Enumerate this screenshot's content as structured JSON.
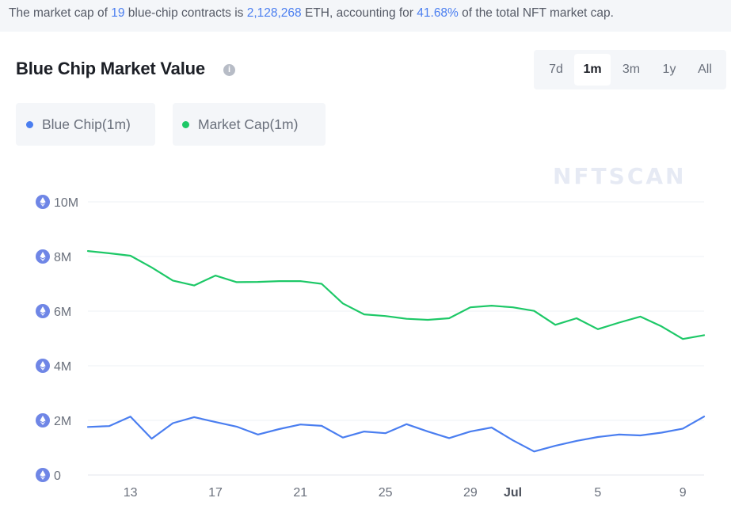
{
  "banner": {
    "part1": "The market cap of ",
    "contracts": "19",
    "part2": " blue-chip contracts is ",
    "value": "2,128,268",
    "part3": " ETH, accounting for ",
    "percent": "41.68%",
    "part4": " of the total NFT market cap."
  },
  "title": "Blue Chip Market Value",
  "info_icon": "info-icon",
  "range_buttons": [
    {
      "label": "7d",
      "active": false
    },
    {
      "label": "1m",
      "active": true
    },
    {
      "label": "3m",
      "active": false
    },
    {
      "label": "1y",
      "active": false
    },
    {
      "label": "All",
      "active": false
    }
  ],
  "legend": [
    {
      "label": "Blue Chip(1m)",
      "color": "#4a7ef0"
    },
    {
      "label": "Market Cap(1m)",
      "color": "#1dc867"
    }
  ],
  "watermark": "NFTSCAN",
  "axis_icon": "eth-icon",
  "chart_data": {
    "type": "line",
    "ylim": [
      0,
      10000000
    ],
    "y_ticks": [
      {
        "value": 0,
        "label": "0"
      },
      {
        "value": 2000000,
        "label": "2M"
      },
      {
        "value": 4000000,
        "label": "4M"
      },
      {
        "value": 6000000,
        "label": "6M"
      },
      {
        "value": 8000000,
        "label": "8M"
      },
      {
        "value": 10000000,
        "label": "10M"
      }
    ],
    "x": [
      "Jun 11",
      "Jun 12",
      "Jun 13",
      "Jun 14",
      "Jun 15",
      "Jun 16",
      "Jun 17",
      "Jun 18",
      "Jun 19",
      "Jun 20",
      "Jun 21",
      "Jun 22",
      "Jun 23",
      "Jun 24",
      "Jun 25",
      "Jun 26",
      "Jun 27",
      "Jun 28",
      "Jun 29",
      "Jun 30",
      "Jul 1",
      "Jul 2",
      "Jul 3",
      "Jul 4",
      "Jul 5",
      "Jul 6",
      "Jul 7",
      "Jul 8",
      "Jul 9",
      "Jul 10"
    ],
    "x_ticks": [
      {
        "index": 2,
        "label": "13",
        "bold": false
      },
      {
        "index": 6,
        "label": "17",
        "bold": false
      },
      {
        "index": 10,
        "label": "21",
        "bold": false
      },
      {
        "index": 14,
        "label": "25",
        "bold": false
      },
      {
        "index": 18,
        "label": "29",
        "bold": false
      },
      {
        "index": 20,
        "label": "Jul",
        "bold": true
      },
      {
        "index": 24,
        "label": "5",
        "bold": false
      },
      {
        "index": 28,
        "label": "9",
        "bold": false
      }
    ],
    "series": [
      {
        "name": "Market Cap(1m)",
        "color": "#1dc867",
        "values": [
          8200000,
          8120000,
          8030000,
          7600000,
          7120000,
          6940000,
          7300000,
          7060000,
          7070000,
          7100000,
          7100000,
          7000000,
          6280000,
          5880000,
          5820000,
          5720000,
          5680000,
          5740000,
          6140000,
          6200000,
          6140000,
          6010000,
          5500000,
          5740000,
          5340000,
          5580000,
          5800000,
          5440000,
          4980000,
          5120000
        ]
      },
      {
        "name": "Blue Chip(1m)",
        "color": "#4a7ef0",
        "values": [
          1760000,
          1790000,
          2140000,
          1330000,
          1900000,
          2120000,
          1940000,
          1770000,
          1480000,
          1680000,
          1850000,
          1800000,
          1370000,
          1590000,
          1530000,
          1860000,
          1590000,
          1350000,
          1590000,
          1740000,
          1270000,
          860000,
          1070000,
          1250000,
          1390000,
          1480000,
          1450000,
          1550000,
          1700000,
          2140000
        ]
      }
    ]
  }
}
